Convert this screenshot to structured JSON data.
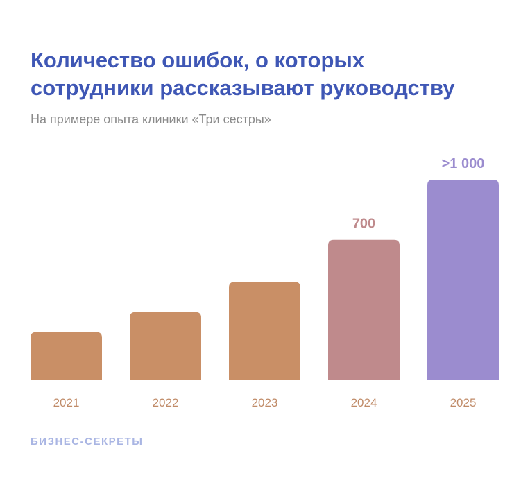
{
  "chart_data": {
    "type": "bar",
    "title": "Количество ошибок, о которых сотрудники рассказывают руководству",
    "subtitle": "На примере опыта клиники «Три сестры»",
    "categories": [
      "2021",
      "2022",
      "2023",
      "2024",
      "2025"
    ],
    "values": [
      240,
      340,
      490,
      700,
      1000
    ],
    "value_labels": [
      null,
      null,
      null,
      "700",
      ">1 000"
    ],
    "colors": [
      "#c98f66",
      "#c98f66",
      "#c98f66",
      "#bf8a8c",
      "#9b8ccf"
    ],
    "source": "БИЗНЕС-СЕКРЕТЫ"
  }
}
